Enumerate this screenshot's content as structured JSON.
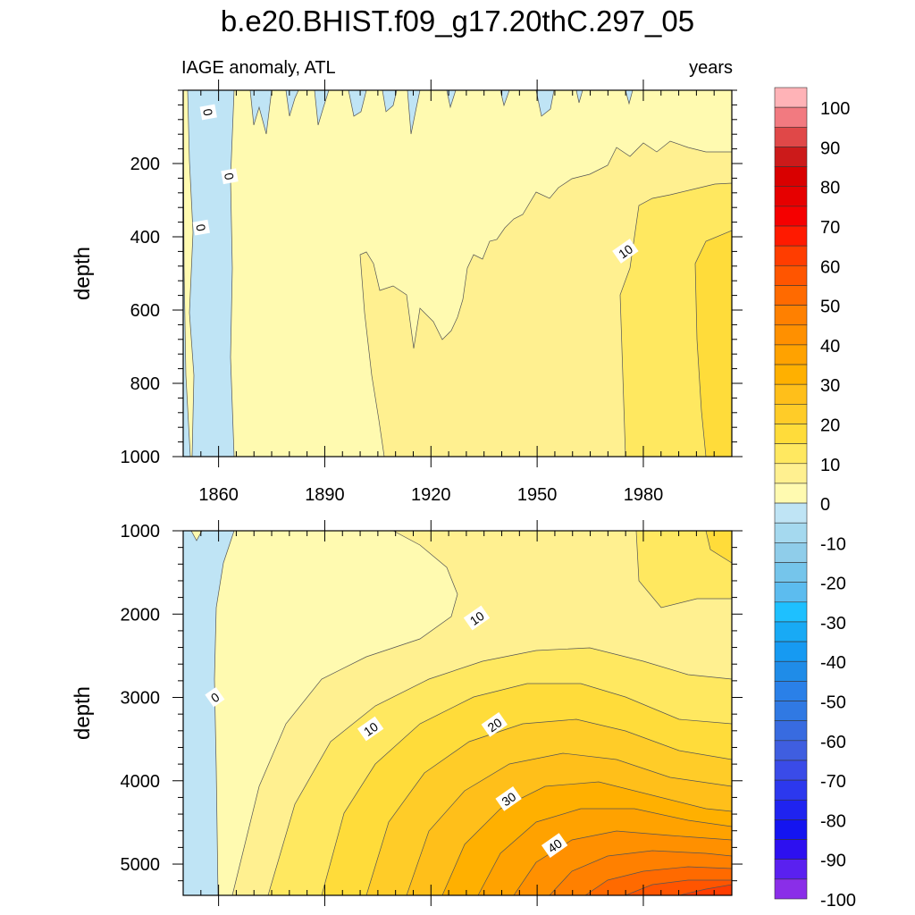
{
  "chart_data": {
    "type": "heatmap",
    "title": "b.e20.BHIST.f09_g17.20thC.297_05",
    "subtitle_left": "IAGE anomaly, ATL",
    "subtitle_right": "years",
    "x_ticks": [
      "1860",
      "1890",
      "1920",
      "1950",
      "1980"
    ],
    "x_range": [
      1850,
      2005
    ],
    "panels": [
      {
        "ylabel": "depth",
        "y_range": [
          0,
          1000
        ],
        "y_reversed": true,
        "y_ticks": [
          "200",
          "400",
          "600",
          "800",
          "1000"
        ],
        "contour_labels": [
          {
            "text": "0",
            "x": 1857,
            "y": 60
          },
          {
            "text": "0",
            "x": 1863,
            "y": 235
          },
          {
            "text": "0",
            "x": 1855,
            "y": 375
          },
          {
            "text": "10",
            "x": 1975,
            "y": 440
          }
        ]
      },
      {
        "ylabel": "depth",
        "y_range": [
          1000,
          5375
        ],
        "y_reversed": false,
        "y_ticks": [
          "1000",
          "2000",
          "3000",
          "4000",
          "5000"
        ],
        "contour_labels": [
          {
            "text": "0",
            "x": 1859,
            "y": 3000
          },
          {
            "text": "10",
            "x": 1933,
            "y": 2050
          },
          {
            "text": "10",
            "x": 1903,
            "y": 3380
          },
          {
            "text": "20",
            "x": 1938,
            "y": 3330
          },
          {
            "text": "30",
            "x": 1942,
            "y": 4220
          },
          {
            "text": "40",
            "x": 1955,
            "y": 4780
          }
        ]
      }
    ],
    "colorbar": {
      "labels": [
        "100",
        "90",
        "80",
        "70",
        "60",
        "50",
        "40",
        "30",
        "20",
        "10",
        "0",
        "-10",
        "-20",
        "-30",
        "-40",
        "-50",
        "-60",
        "-70",
        "-80",
        "-90",
        "-100"
      ],
      "colors": [
        "#ffb3b7",
        "#f27a80",
        "#e04848",
        "#cc1a1a",
        "#d90000",
        "#e60000",
        "#f50000",
        "#ff1a00",
        "#ff3d00",
        "#ff5500",
        "#ff6a00",
        "#ff8000",
        "#ff9000",
        "#ffa200",
        "#ffb000",
        "#ffbf1a",
        "#ffcc28",
        "#ffdc3a",
        "#ffe860",
        "#fff090",
        "#fffab0",
        "#bfe4f5",
        "#a5d9ef",
        "#8fcdea",
        "#75c5eb",
        "#5cbcef",
        "#1ec0ff",
        "#18aaf5",
        "#169af2",
        "#1f8ce8",
        "#2a80e8",
        "#3079e3",
        "#386be0",
        "#3f5ee0",
        "#3a4be8",
        "#2c38ee",
        "#1f23f0",
        "#1414f0",
        "#2d10f0",
        "#5a20f0",
        "#8a2ee8"
      ]
    }
  }
}
